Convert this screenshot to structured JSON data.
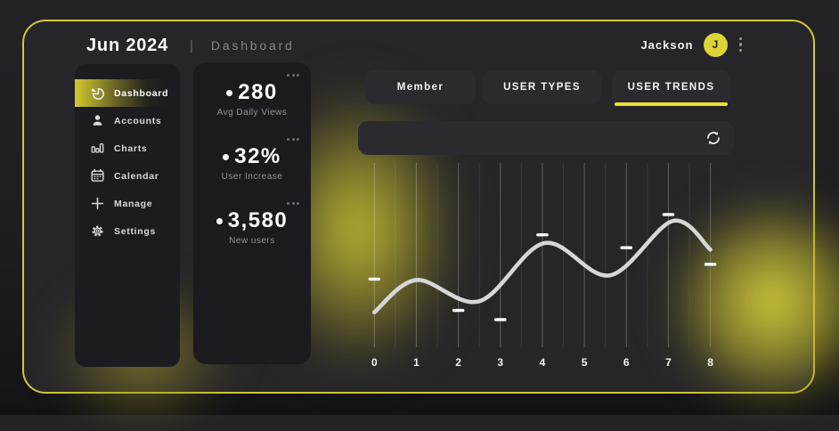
{
  "header": {
    "title": "Jun 2024",
    "separator": "|",
    "breadcrumb": "Dashboard",
    "user_name": "Jackson",
    "avatar_initial": "J"
  },
  "sidebar": {
    "items": [
      {
        "label": "Dashboard",
        "icon": "pie-chart-icon",
        "active": true
      },
      {
        "label": "Accounts",
        "icon": "user-icon",
        "active": false
      },
      {
        "label": "Charts",
        "icon": "bar-chart-icon",
        "active": false
      },
      {
        "label": "Calendar",
        "icon": "calendar-icon",
        "active": false
      },
      {
        "label": "Manage",
        "icon": "plus-icon",
        "active": false
      },
      {
        "label": "Settings",
        "icon": "gear-icon",
        "active": false
      }
    ]
  },
  "stats": [
    {
      "value": "280",
      "label": "Avg Daily Views"
    },
    {
      "value": "32%",
      "label": "User Increase"
    },
    {
      "value": "3,580",
      "label": "New users"
    }
  ],
  "tabs": [
    {
      "label": "Member",
      "active": false
    },
    {
      "label": "USER TYPES",
      "active": false
    },
    {
      "label": "USER TRENDS",
      "active": true
    }
  ],
  "colors": {
    "accent_yellow": "#ddd437",
    "border_yellow": "#cfca30",
    "underline_yellow": "#e8e134",
    "card_dark": "#1b1a1e",
    "panel_dark": "#262529",
    "line_gray": "#d6d5d8",
    "marker_white": "#ffffff"
  },
  "chart_data": {
    "type": "line",
    "title": "",
    "xlabel": "",
    "ylabel": "",
    "x_tick_labels": [
      "0",
      "1",
      "2",
      "3",
      "4",
      "5",
      "6",
      "7",
      "8"
    ],
    "x_range": [
      0,
      8
    ],
    "y_range": [
      0,
      100
    ],
    "grid": {
      "vertical_major": true,
      "vertical_minor_halves": true,
      "horizontal": false
    },
    "legend": null,
    "curve_points": [
      [
        0,
        19
      ],
      [
        1,
        36.5
      ],
      [
        2.5,
        25
      ],
      [
        4.05,
        56.5
      ],
      [
        5.6,
        39
      ],
      [
        7.1,
        68.5
      ],
      [
        8,
        53
      ]
    ],
    "tick_markers": [
      [
        0,
        37
      ],
      [
        2,
        20
      ],
      [
        3,
        15
      ],
      [
        4,
        61
      ],
      [
        6,
        54
      ],
      [
        7,
        72
      ],
      [
        8,
        45
      ]
    ]
  }
}
